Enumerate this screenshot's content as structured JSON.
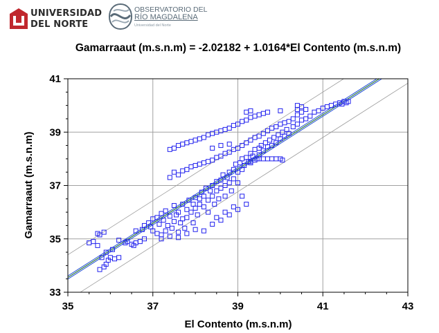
{
  "header": {
    "uninorte_line1": "UNIVERSIDAD",
    "uninorte_line2": "DEL NORTE",
    "observatorio_line1": "OBSERVATORIO DEL",
    "observatorio_line2": "RÍO MAGDALENA",
    "observatorio_sub": "Universidad del Norte"
  },
  "colors": {
    "points": "#2020ee",
    "fit_line": "#2f7a3f",
    "confidence_band": "#1f4bd6",
    "prediction_band": "#9a9a9a",
    "grid": "#a0a0a0",
    "uninorte_red": "#c0272d"
  },
  "chart_data": {
    "type": "scatter",
    "title": "Gamarraaut (m.s.n.m) = -2.02182 + 1.0164*El Contento (m.s.n.m)",
    "xlabel": "El Contento (m.s.n.m)",
    "ylabel": "Gamarraaut (m.s.n.m)",
    "xlim": [
      35,
      43
    ],
    "ylim": [
      33,
      41
    ],
    "xticks": [
      "35",
      "37",
      "39",
      "41",
      "43"
    ],
    "yticks": [
      "41",
      "39",
      "37",
      "35",
      "33"
    ],
    "grid": true,
    "regression": {
      "intercept": -2.02182,
      "slope": 1.0164
    },
    "prediction_band_offset": 0.85,
    "confidence_band_offset": 0.06,
    "series": [
      {
        "marker": "open-square",
        "points": [
          [
            35.5,
            34.85
          ],
          [
            35.6,
            34.9
          ],
          [
            35.7,
            34.75
          ],
          [
            35.75,
            35.15
          ],
          [
            35.85,
            35.25
          ],
          [
            35.7,
            35.2
          ],
          [
            35.8,
            34.3
          ],
          [
            35.9,
            34.5
          ],
          [
            35.95,
            34.2
          ],
          [
            36.0,
            34.3
          ],
          [
            36.05,
            34.6
          ],
          [
            36.1,
            34.25
          ],
          [
            36.2,
            34.3
          ],
          [
            35.75,
            33.85
          ],
          [
            35.85,
            33.95
          ],
          [
            35.9,
            34.05
          ],
          [
            36.2,
            34.95
          ],
          [
            36.35,
            34.85
          ],
          [
            36.4,
            34.9
          ],
          [
            36.5,
            34.8
          ],
          [
            36.55,
            34.75
          ],
          [
            36.6,
            34.85
          ],
          [
            36.7,
            34.9
          ],
          [
            36.8,
            35.0
          ],
          [
            36.6,
            35.3
          ],
          [
            36.75,
            35.35
          ],
          [
            36.8,
            35.5
          ],
          [
            36.9,
            35.6
          ],
          [
            36.95,
            35.45
          ],
          [
            37.0,
            35.3
          ],
          [
            37.0,
            35.75
          ],
          [
            37.1,
            35.8
          ],
          [
            37.1,
            35.2
          ],
          [
            37.2,
            35.15
          ],
          [
            37.15,
            35.55
          ],
          [
            37.2,
            35.95
          ],
          [
            37.25,
            35.7
          ],
          [
            37.3,
            35.3
          ],
          [
            37.3,
            36.05
          ],
          [
            37.35,
            35.5
          ],
          [
            37.4,
            35.85
          ],
          [
            37.45,
            35.4
          ],
          [
            37.5,
            35.65
          ],
          [
            37.5,
            36.25
          ],
          [
            37.55,
            35.9
          ],
          [
            37.6,
            35.25
          ],
          [
            37.6,
            36.0
          ],
          [
            37.65,
            35.6
          ],
          [
            37.7,
            36.3
          ],
          [
            37.7,
            35.75
          ],
          [
            37.75,
            35.4
          ],
          [
            37.8,
            36.1
          ],
          [
            37.8,
            35.8
          ],
          [
            37.85,
            36.45
          ],
          [
            37.9,
            36.0
          ],
          [
            37.95,
            36.3
          ],
          [
            37.95,
            35.6
          ],
          [
            38.0,
            36.55
          ],
          [
            38.0,
            36.15
          ],
          [
            38.05,
            35.9
          ],
          [
            38.1,
            36.5
          ],
          [
            38.1,
            36.3
          ],
          [
            38.15,
            36.75
          ],
          [
            38.2,
            36.2
          ],
          [
            38.2,
            36.6
          ],
          [
            38.25,
            36.9
          ],
          [
            38.3,
            36.45
          ],
          [
            38.3,
            36.0
          ],
          [
            38.35,
            36.8
          ],
          [
            38.4,
            37.0
          ],
          [
            38.4,
            36.6
          ],
          [
            38.45,
            36.3
          ],
          [
            38.5,
            37.15
          ],
          [
            38.5,
            36.8
          ],
          [
            38.55,
            36.5
          ],
          [
            38.6,
            37.2
          ],
          [
            38.6,
            36.9
          ],
          [
            38.65,
            37.4
          ],
          [
            38.7,
            37.0
          ],
          [
            38.7,
            36.6
          ],
          [
            38.75,
            37.3
          ],
          [
            38.8,
            37.5
          ],
          [
            38.8,
            37.1
          ],
          [
            38.85,
            36.8
          ],
          [
            38.9,
            37.6
          ],
          [
            38.9,
            37.25
          ],
          [
            38.95,
            37.8
          ],
          [
            39.0,
            37.5
          ],
          [
            39.0,
            37.1
          ],
          [
            39.05,
            37.85
          ],
          [
            39.1,
            37.6
          ],
          [
            39.1,
            38.0
          ],
          [
            39.15,
            37.75
          ],
          [
            39.2,
            38.05
          ],
          [
            39.25,
            37.9
          ],
          [
            39.3,
            38.2
          ],
          [
            39.3,
            37.85
          ],
          [
            39.35,
            38.1
          ],
          [
            39.4,
            38.35
          ],
          [
            39.45,
            38.0
          ],
          [
            39.5,
            38.4
          ],
          [
            39.5,
            38.15
          ],
          [
            39.55,
            38.5
          ],
          [
            39.6,
            38.3
          ],
          [
            39.65,
            38.6
          ],
          [
            39.7,
            38.45
          ],
          [
            39.75,
            38.7
          ],
          [
            39.8,
            38.5
          ],
          [
            39.85,
            38.8
          ],
          [
            39.9,
            38.6
          ],
          [
            39.95,
            38.9
          ],
          [
            40.0,
            38.75
          ],
          [
            40.05,
            39.0
          ],
          [
            40.1,
            38.85
          ],
          [
            40.15,
            39.1
          ],
          [
            40.2,
            38.95
          ],
          [
            40.3,
            39.2
          ],
          [
            40.4,
            39.3
          ],
          [
            40.5,
            39.45
          ],
          [
            40.6,
            39.5
          ],
          [
            40.7,
            39.6
          ],
          [
            40.8,
            39.75
          ],
          [
            40.9,
            39.8
          ],
          [
            41.0,
            39.9
          ],
          [
            41.1,
            39.95
          ],
          [
            41.2,
            40.0
          ],
          [
            41.3,
            40.05
          ],
          [
            41.4,
            40.1
          ],
          [
            41.5,
            40.15
          ],
          [
            41.6,
            40.15
          ],
          [
            41.55,
            40.1
          ],
          [
            41.45,
            40.05
          ],
          [
            39.5,
            38.0
          ],
          [
            39.6,
            38.0
          ],
          [
            39.7,
            38.0
          ],
          [
            39.8,
            38.0
          ],
          [
            39.9,
            38.0
          ],
          [
            40.0,
            38.0
          ],
          [
            40.05,
            37.95
          ],
          [
            39.4,
            37.95
          ],
          [
            39.3,
            37.9
          ],
          [
            37.4,
            37.3
          ],
          [
            37.5,
            37.5
          ],
          [
            37.6,
            37.4
          ],
          [
            37.7,
            37.55
          ],
          [
            37.8,
            37.6
          ],
          [
            37.9,
            37.7
          ],
          [
            38.0,
            37.75
          ],
          [
            38.1,
            37.8
          ],
          [
            38.2,
            37.85
          ],
          [
            38.3,
            37.9
          ],
          [
            38.4,
            37.95
          ],
          [
            38.5,
            38.05
          ],
          [
            38.6,
            38.1
          ],
          [
            38.7,
            38.2
          ],
          [
            38.8,
            38.25
          ],
          [
            38.9,
            38.35
          ],
          [
            39.0,
            38.4
          ],
          [
            39.1,
            38.5
          ],
          [
            39.2,
            38.6
          ],
          [
            39.3,
            38.7
          ],
          [
            39.4,
            38.8
          ],
          [
            39.5,
            38.85
          ],
          [
            39.6,
            38.95
          ],
          [
            39.7,
            39.05
          ],
          [
            39.8,
            39.15
          ],
          [
            39.9,
            39.2
          ],
          [
            40.0,
            39.3
          ],
          [
            40.1,
            39.35
          ],
          [
            40.2,
            39.4
          ],
          [
            40.3,
            39.5
          ],
          [
            40.4,
            39.65
          ],
          [
            40.5,
            39.75
          ],
          [
            40.6,
            39.85
          ],
          [
            40.4,
            39.85
          ],
          [
            40.5,
            39.95
          ],
          [
            40.4,
            40.0
          ],
          [
            37.4,
            38.35
          ],
          [
            37.5,
            38.4
          ],
          [
            37.6,
            38.5
          ],
          [
            37.7,
            38.55
          ],
          [
            37.8,
            38.6
          ],
          [
            37.9,
            38.65
          ],
          [
            38.0,
            38.7
          ],
          [
            38.1,
            38.75
          ],
          [
            38.2,
            38.8
          ],
          [
            38.3,
            38.9
          ],
          [
            38.4,
            38.95
          ],
          [
            38.5,
            39.0
          ],
          [
            38.6,
            39.05
          ],
          [
            38.7,
            39.1
          ],
          [
            38.8,
            39.15
          ],
          [
            38.9,
            39.25
          ],
          [
            39.0,
            39.3
          ],
          [
            39.1,
            39.4
          ],
          [
            39.2,
            39.45
          ],
          [
            39.3,
            39.55
          ],
          [
            39.4,
            39.6
          ],
          [
            39.5,
            39.65
          ],
          [
            39.6,
            39.7
          ],
          [
            39.7,
            39.75
          ],
          [
            39.2,
            39.75
          ],
          [
            39.3,
            39.8
          ],
          [
            40.0,
            39.8
          ],
          [
            38.4,
            38.4
          ],
          [
            38.6,
            38.5
          ],
          [
            38.8,
            38.55
          ],
          [
            37.2,
            35.0
          ],
          [
            37.4,
            35.1
          ],
          [
            37.6,
            35.05
          ],
          [
            37.8,
            35.2
          ],
          [
            38.0,
            35.35
          ],
          [
            38.2,
            35.3
          ],
          [
            38.4,
            35.55
          ],
          [
            38.6,
            35.7
          ],
          [
            38.8,
            35.9
          ],
          [
            39.0,
            36.1
          ],
          [
            39.2,
            36.3
          ],
          [
            39.1,
            36.6
          ],
          [
            38.9,
            36.2
          ],
          [
            38.7,
            36.0
          ],
          [
            38.5,
            35.8
          ]
        ]
      }
    ]
  }
}
